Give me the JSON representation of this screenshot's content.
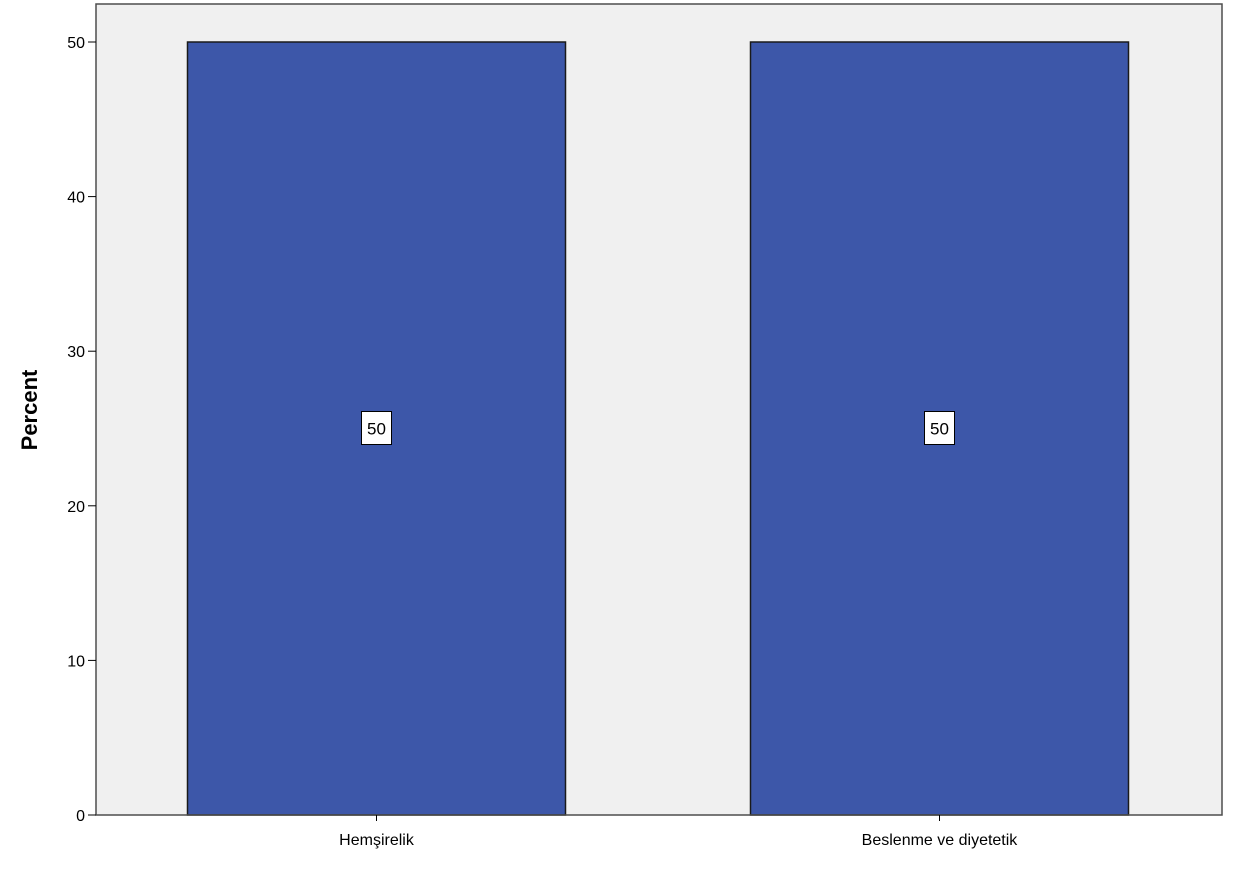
{
  "chart_data": {
    "type": "bar",
    "title": "",
    "xlabel": "",
    "ylabel": "Percent",
    "categories": [
      "Hemşirelik",
      "Beslenme ve diyetetik"
    ],
    "values": [
      50,
      50
    ],
    "data_labels": [
      "50",
      "50"
    ],
    "ylim": [
      0,
      50
    ],
    "yticks": [
      0,
      10,
      20,
      30,
      40,
      50
    ],
    "grid": false,
    "legend": "none",
    "colors": {
      "bar": "#3d57a9",
      "bar_stroke": "#1a1a1a",
      "plot_background": "#f0f0f0",
      "frame": "#4d4d4d",
      "label_box": "#ffffff"
    }
  }
}
